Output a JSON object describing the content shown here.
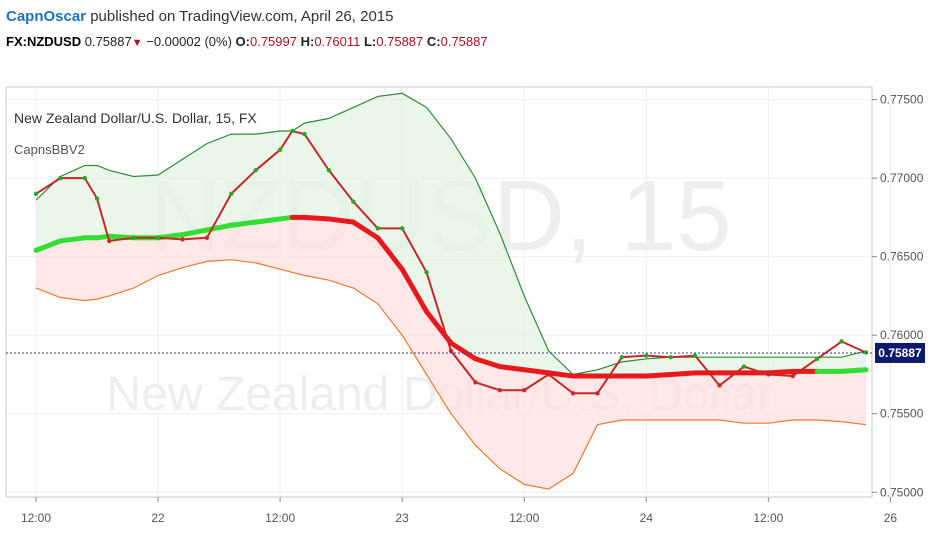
{
  "header": {
    "author": "CapnOscar",
    "published": "published on TradingView.com, April 26, 2015",
    "symbol": "FX:NZDUSD",
    "last": "0.75887",
    "change": "−0.00002 (0%)",
    "open_label": "O:",
    "open": "0.75997",
    "high_label": "H:",
    "high": "0.76011",
    "low_label": "L:",
    "low": "0.75887",
    "close_label": "C:",
    "close": "0.75887"
  },
  "chart_data": {
    "type": "line",
    "title": "New Zealand Dollar/U.S. Dollar, 15, FX",
    "indicator": "CapnsBBV2",
    "watermark_symbol": "NZDUSD, 15",
    "watermark_name": "New Zealand Dollar/U.S. Dollar",
    "ylim": [
      0.7497,
      0.7758
    ],
    "y_ticks": [
      "0.77500",
      "0.77000",
      "0.76500",
      "0.76000",
      "0.75500",
      "0.75000"
    ],
    "y_tick_values": [
      0.775,
      0.77,
      0.765,
      0.76,
      0.755,
      0.75
    ],
    "x_ticks": [
      "12:00",
      "22",
      "12:00",
      "23",
      "12:00",
      "24",
      "12:00",
      "26"
    ],
    "x_tick_positions": [
      0,
      1,
      2,
      3,
      4,
      5,
      6,
      7
    ],
    "last_price_label": "0.75887",
    "last_price": 0.75887,
    "x": [
      0,
      0.2,
      0.4,
      0.5,
      0.6,
      0.8,
      1.0,
      1.2,
      1.4,
      1.6,
      1.8,
      2.0,
      2.1,
      2.2,
      2.4,
      2.6,
      2.8,
      3.0,
      3.2,
      3.4,
      3.6,
      3.8,
      4.0,
      4.2,
      4.4,
      4.6,
      4.8,
      5.0,
      5.2,
      5.4,
      5.6,
      5.8,
      6.0,
      6.2,
      6.4,
      6.6,
      6.8
    ],
    "series": [
      {
        "name": "upper",
        "color": "#2e8b3a",
        "values": [
          0.7686,
          0.7701,
          0.7708,
          0.7708,
          0.7705,
          0.7701,
          0.7702,
          0.7712,
          0.7722,
          0.7728,
          0.7728,
          0.773,
          0.773,
          0.7735,
          0.7738,
          0.7745,
          0.7752,
          0.7754,
          0.7745,
          0.7725,
          0.77,
          0.7665,
          0.7625,
          0.759,
          0.7575,
          0.7578,
          0.7583,
          0.7585,
          0.7586,
          0.7586,
          0.7586,
          0.7586,
          0.7586,
          0.7586,
          0.7586,
          0.7586,
          0.759
        ]
      },
      {
        "name": "lower",
        "color": "#f07830",
        "values": [
          0.763,
          0.7624,
          0.7622,
          0.7623,
          0.7625,
          0.763,
          0.7638,
          0.7643,
          0.7647,
          0.7648,
          0.7646,
          0.7642,
          0.764,
          0.7638,
          0.7635,
          0.763,
          0.762,
          0.76,
          0.7575,
          0.755,
          0.753,
          0.7515,
          0.7505,
          0.7502,
          0.7512,
          0.7543,
          0.7546,
          0.7546,
          0.7546,
          0.7546,
          0.7546,
          0.7544,
          0.7544,
          0.7546,
          0.7546,
          0.7545,
          0.7543
        ]
      },
      {
        "name": "basis",
        "color": "#e8191d",
        "values": [
          0.7654,
          0.766,
          0.7662,
          0.7662,
          0.7663,
          0.7662,
          0.7662,
          0.7664,
          0.7667,
          0.767,
          0.7672,
          0.7674,
          0.7675,
          0.7675,
          0.7674,
          0.7672,
          0.7662,
          0.7642,
          0.7615,
          0.7595,
          0.7585,
          0.758,
          0.7578,
          0.7576,
          0.7574,
          0.7574,
          0.7574,
          0.7574,
          0.7575,
          0.7576,
          0.7576,
          0.7576,
          0.7576,
          0.7577,
          0.7577,
          0.7577,
          0.7578
        ]
      },
      {
        "name": "price",
        "color": "#c62828",
        "values": [
          0.769,
          0.77,
          0.77,
          0.7687,
          0.766,
          0.7662,
          0.7662,
          0.7661,
          0.7662,
          0.769,
          0.7705,
          0.7718,
          0.773,
          0.7728,
          0.7705,
          0.7685,
          0.7668,
          0.7668,
          0.764,
          0.759,
          0.757,
          0.7565,
          0.7565,
          0.7575,
          0.7563,
          0.7563,
          0.7586,
          0.7587,
          0.7586,
          0.7587,
          0.7568,
          0.758,
          0.7575,
          0.7574,
          0.7585,
          0.7596,
          0.7589
        ]
      }
    ]
  }
}
